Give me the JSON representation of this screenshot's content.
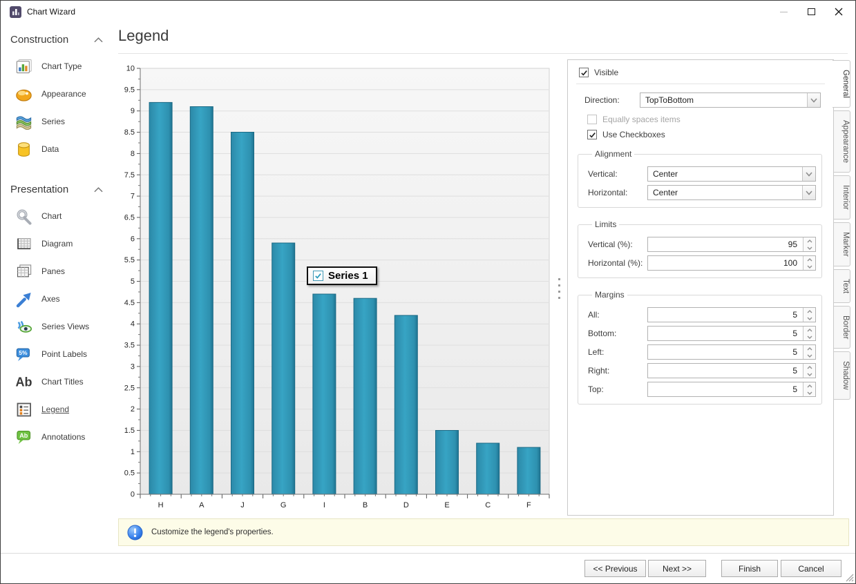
{
  "window": {
    "title": "Chart Wizard"
  },
  "sidebar": {
    "sections": [
      {
        "label": "Construction",
        "items": [
          {
            "icon": "chart-type-icon",
            "label": "Chart Type"
          },
          {
            "icon": "appearance-icon",
            "label": "Appearance"
          },
          {
            "icon": "series-icon",
            "label": "Series"
          },
          {
            "icon": "data-icon",
            "label": "Data"
          }
        ]
      },
      {
        "label": "Presentation",
        "items": [
          {
            "icon": "chart-icon",
            "label": "Chart"
          },
          {
            "icon": "diagram-icon",
            "label": "Diagram"
          },
          {
            "icon": "panes-icon",
            "label": "Panes"
          },
          {
            "icon": "axes-icon",
            "label": "Axes"
          },
          {
            "icon": "series-views-icon",
            "label": "Series Views"
          },
          {
            "icon": "point-labels-icon",
            "label": "Point Labels"
          },
          {
            "icon": "chart-titles-icon",
            "label": "Chart Titles"
          },
          {
            "icon": "legend-icon",
            "label": "Legend",
            "selected": true
          },
          {
            "icon": "annotations-icon",
            "label": "Annotations"
          }
        ]
      }
    ]
  },
  "page": {
    "title": "Legend"
  },
  "chart_data": {
    "type": "bar",
    "categories": [
      "H",
      "A",
      "J",
      "G",
      "I",
      "B",
      "D",
      "E",
      "C",
      "F"
    ],
    "values": [
      9.2,
      9.1,
      8.5,
      5.9,
      4.7,
      4.6,
      4.2,
      1.5,
      1.2,
      1.1
    ],
    "series_name": "Series 1",
    "title": "",
    "xlabel": "",
    "ylabel": "",
    "ylim": [
      0,
      10
    ],
    "ytick_step": 0.5,
    "grid": true,
    "bar_color": "#2e91b0",
    "legend_position": "center"
  },
  "legend_overlay": {
    "series_label": "Series 1",
    "checked": true
  },
  "panel": {
    "visible": {
      "label": "Visible",
      "checked": true
    },
    "direction": {
      "label": "Direction:",
      "value": "TopToBottom"
    },
    "equally_spaces": {
      "label": "Equally spaces items",
      "checked": false,
      "enabled": false
    },
    "use_checkboxes": {
      "label": "Use Checkboxes",
      "checked": true
    },
    "alignment": {
      "label": "Alignment",
      "rows": [
        {
          "label": "Vertical:",
          "value": "Center",
          "control": "combo"
        },
        {
          "label": "Horizontal:",
          "value": "Center",
          "control": "combo"
        }
      ]
    },
    "limits": {
      "label": "Limits",
      "rows": [
        {
          "label": "Vertical (%):",
          "value": "95",
          "control": "spin"
        },
        {
          "label": "Horizontal (%):",
          "value": "100",
          "control": "spin"
        }
      ]
    },
    "margins": {
      "label": "Margins",
      "rows": [
        {
          "label": "All:",
          "value": "5",
          "control": "spin"
        },
        {
          "label": "Bottom:",
          "value": "5",
          "control": "spin"
        },
        {
          "label": "Left:",
          "value": "5",
          "control": "spin"
        },
        {
          "label": "Right:",
          "value": "5",
          "control": "spin"
        },
        {
          "label": "Top:",
          "value": "5",
          "control": "spin"
        }
      ]
    }
  },
  "side_tabs": [
    {
      "label": "General",
      "selected": true
    },
    {
      "label": "Appearance"
    },
    {
      "label": "Interior"
    },
    {
      "label": "Marker"
    },
    {
      "label": "Text"
    },
    {
      "label": "Border"
    },
    {
      "label": "Shadow"
    }
  ],
  "status": {
    "message": "Customize the legend's properties."
  },
  "footer": {
    "previous": "<< Previous",
    "next": "Next >>",
    "finish": "Finish",
    "cancel": "Cancel"
  },
  "icons": {
    "point_labels_glyph": "5%",
    "chart_titles_glyph": "Ab",
    "annotations_glyph": "Ab"
  },
  "colors": {
    "bar": "#2e91b0",
    "bar_edge": "#1c6a85",
    "accent_teal": "#2f9dbd",
    "info_bg": "#fdfce8",
    "plot_bg": "#f1f1f1",
    "grid": "#dedede"
  }
}
